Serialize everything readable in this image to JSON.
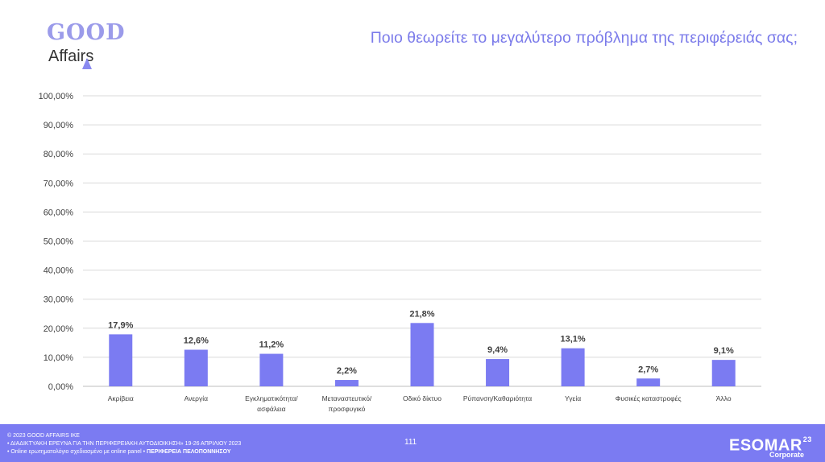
{
  "logo": {
    "top": "GOOD",
    "bottom": "Affairs"
  },
  "header": {
    "title": "Ποιο θεωρείτε το μεγαλύτερο πρόβλημα της περιφέρειάς σας;"
  },
  "chart_data": {
    "type": "bar",
    "categories": [
      [
        "Ακρίβεια"
      ],
      [
        "Ανεργία"
      ],
      [
        "Εγκληματικότητα/",
        "ασφάλεια"
      ],
      [
        "Μεταναστευτικό/",
        "προσφυγικό"
      ],
      [
        "Οδικό δίκτυο"
      ],
      [
        "Ρύπανση/Καθαριότητα"
      ],
      [
        "Υγεία"
      ],
      [
        "Φυσικές καταστροφές"
      ],
      [
        "Άλλο"
      ]
    ],
    "values": [
      17.9,
      12.6,
      11.2,
      2.2,
      21.8,
      9.4,
      13.1,
      2.7,
      9.1
    ],
    "value_labels": [
      "17,9%",
      "12,6%",
      "11,2%",
      "2,2%",
      "21,8%",
      "9,4%",
      "13,1%",
      "2,7%",
      "9,1%"
    ],
    "yticks": [
      "0,00%",
      "10,00%",
      "20,00%",
      "30,00%",
      "40,00%",
      "50,00%",
      "60,00%",
      "70,00%",
      "80,00%",
      "90,00%",
      "100,00%"
    ],
    "ylim": [
      0,
      100
    ],
    "grid": true,
    "bar_color": "#7b7bf2"
  },
  "footer": {
    "line1": "© 2023 GOOD AFFAIRS IKE",
    "line2": "• ΔΙΑΔΙΚΤΥΑΚΗ ΕΡΕΥΝΑ  ΓΙΑ ΤΗΝ ΠΕΡΙΦΕΡΕΙΑΚΗ ΑΥΤΟΔΙΟΙΚΗΣΗ» 19-26 ΑΠΡΙΛΙΟΥ 2023",
    "line3a": "• Online ερωτηματολόγιο σχεδιασμένο με online panel  • ",
    "line3b": "ΠΕΡΙΦΕΡΕΙΑ ΠΕΛΟΠΟΝΝΗΣΟΥ",
    "page": "111",
    "esomar": "ESOMAR",
    "esomar_sup": "23",
    "corporate": "Corporate"
  }
}
